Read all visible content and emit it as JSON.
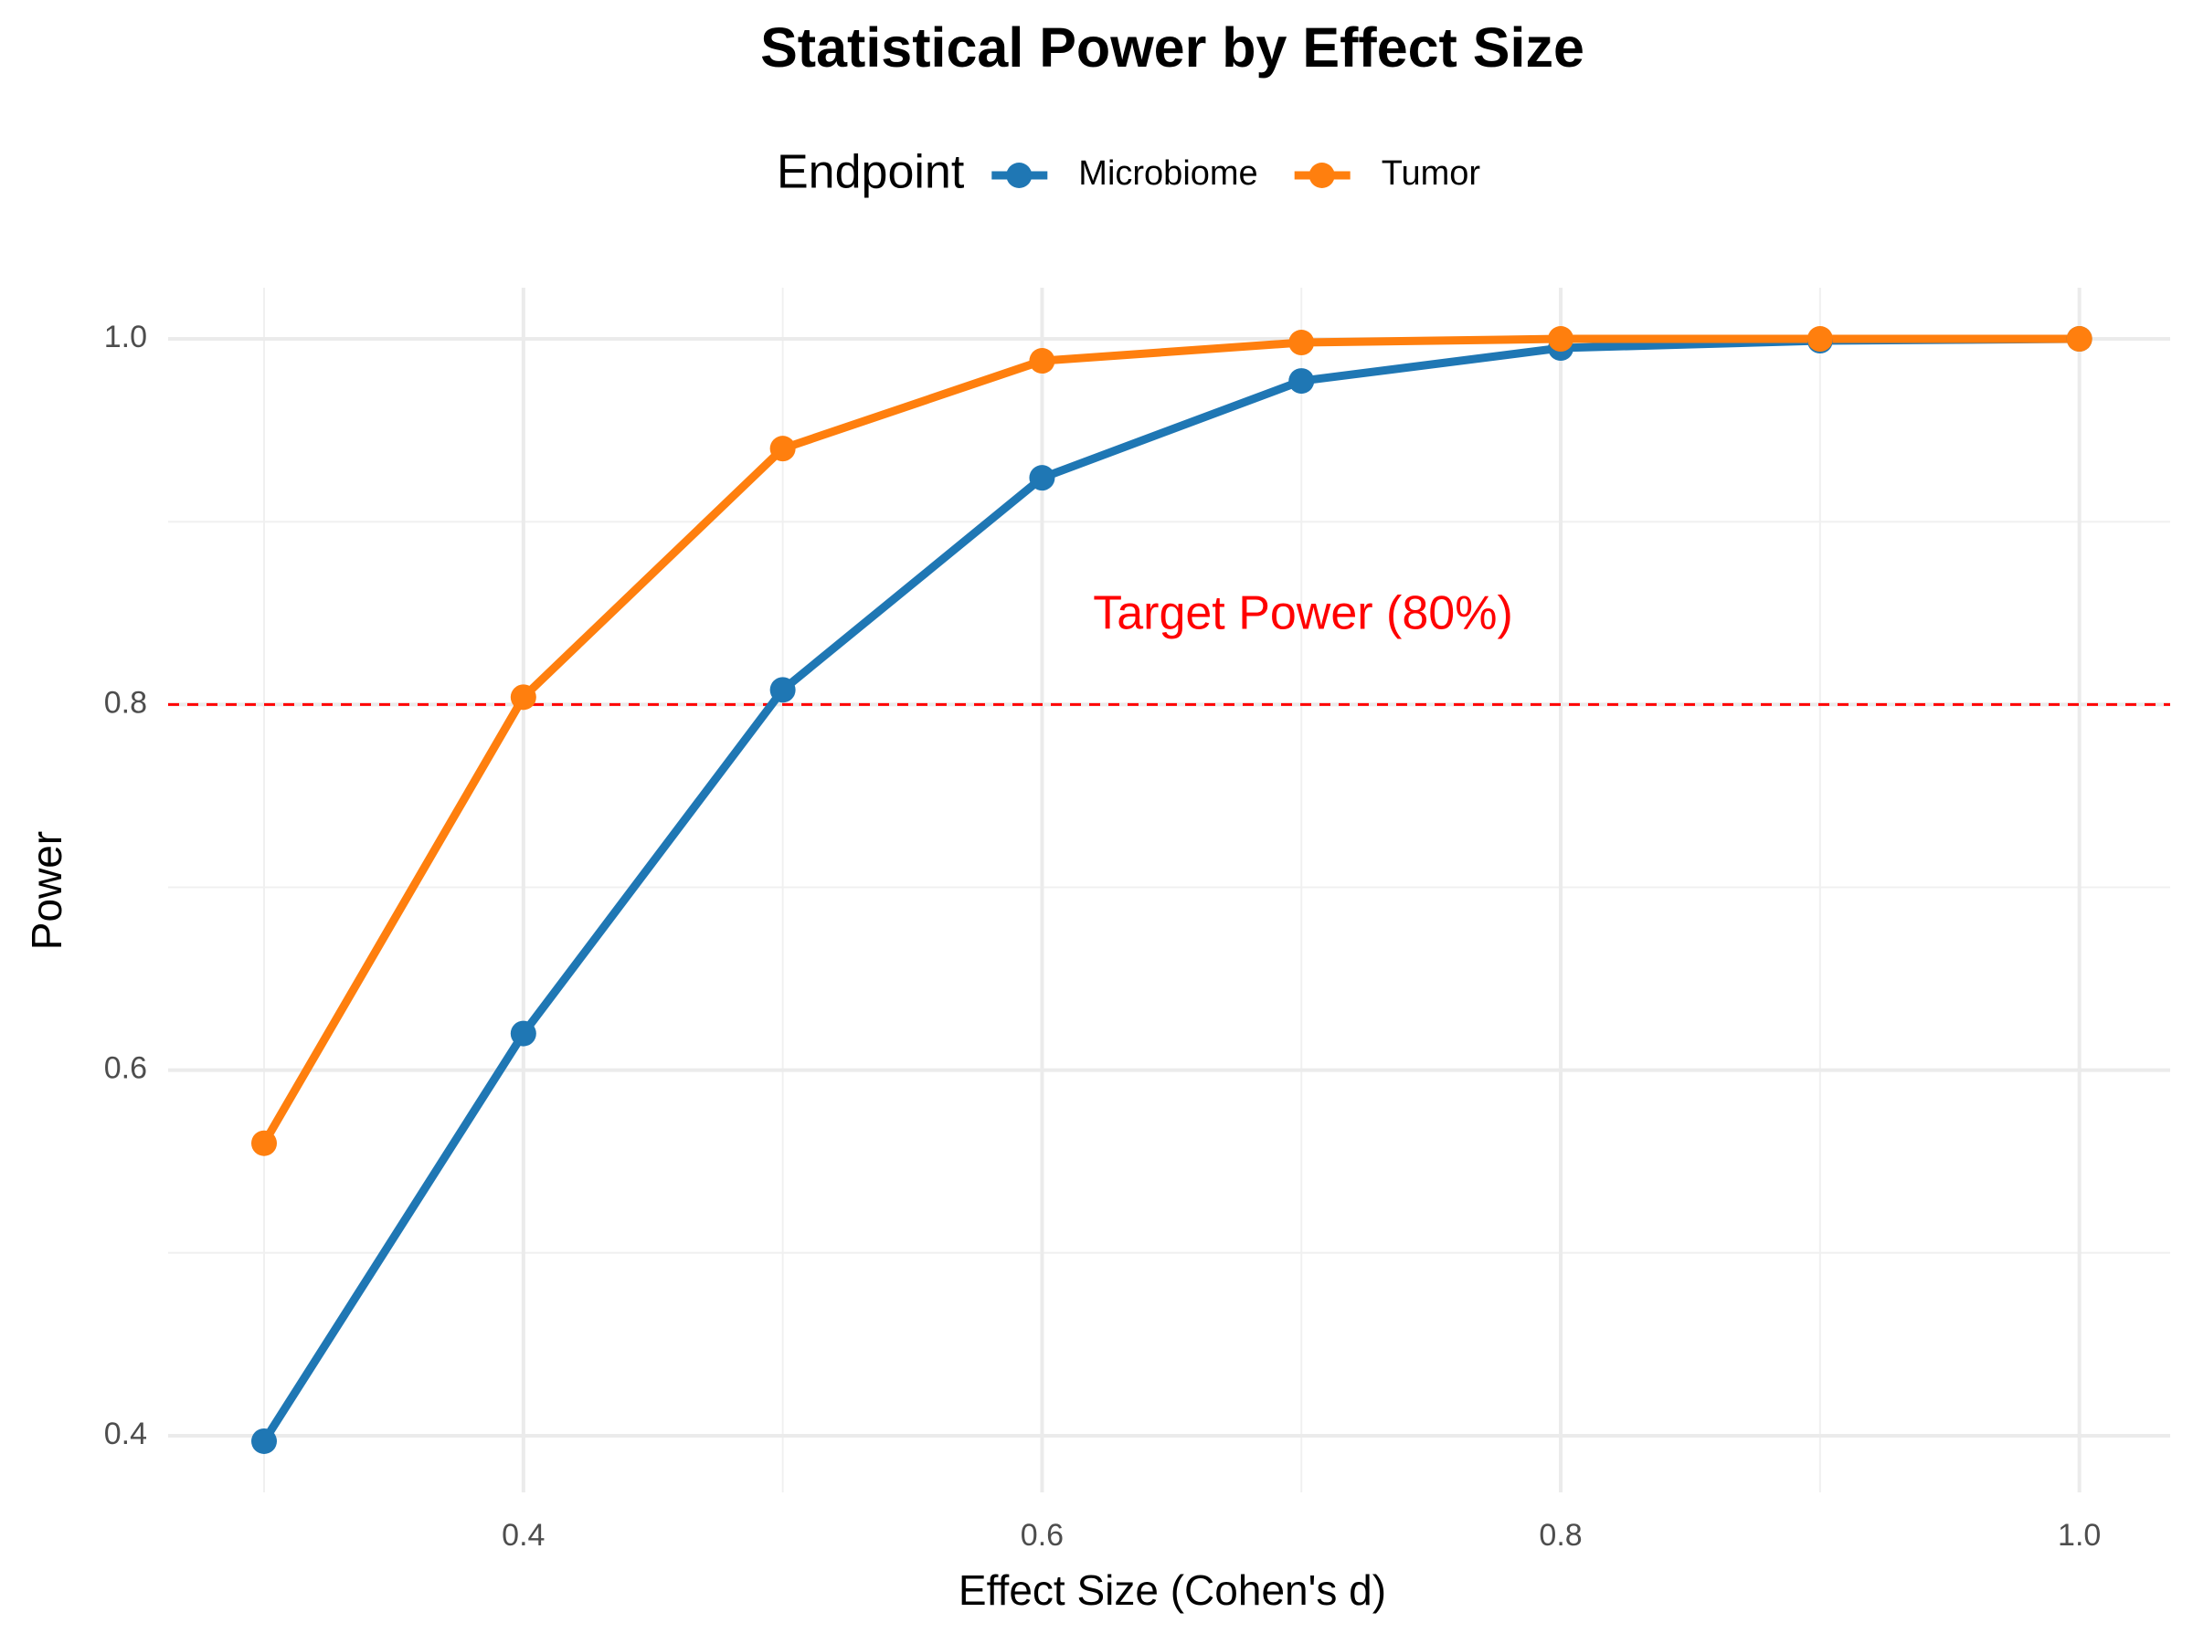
{
  "chart_data": {
    "type": "line",
    "title": "Statistical Power by Effect Size",
    "x_label": "Effect Size (Cohen's d)",
    "y_label": "Power",
    "legend_title": "Endpoint",
    "legend_position": "top",
    "grid": true,
    "x": [
      0.3,
      0.4,
      0.5,
      0.6,
      0.7,
      0.8,
      0.9,
      1.0
    ],
    "series": [
      {
        "name": "Microbiome",
        "color": "#1f77b4",
        "values": [
          0.397,
          0.62,
          0.808,
          0.924,
          0.977,
          0.995,
          0.999,
          1.0
        ]
      },
      {
        "name": "Tumor",
        "color": "#ff7f0e",
        "values": [
          0.56,
          0.804,
          0.94,
          0.988,
          0.998,
          1.0,
          1.0,
          1.0
        ]
      }
    ],
    "xlim": [
      0.263,
      1.035
    ],
    "ylim": [
      0.369,
      1.028
    ],
    "xticks": [
      0.4,
      0.6,
      0.8,
      {
        "value": 1.0,
        "label": "1.0"
      }
    ],
    "yticks": [
      0.4,
      0.6,
      0.8,
      {
        "value": 1.0,
        "label": "1.0"
      }
    ],
    "reference_line": {
      "value": 0.8,
      "color": "#ff0000",
      "label": "Target Power (80%)"
    }
  }
}
